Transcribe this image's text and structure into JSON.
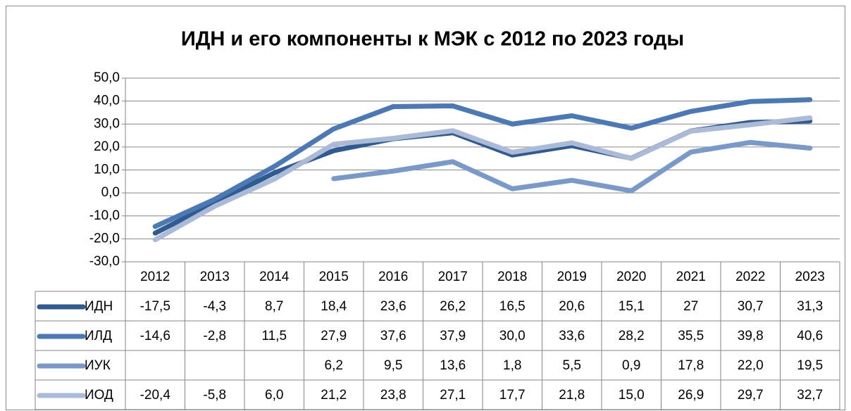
{
  "chart_data": {
    "type": "line",
    "title": "ИДН и его компоненты к МЭК с 2012 по 2023 годы",
    "categories": [
      "2012",
      "2013",
      "2014",
      "2015",
      "2016",
      "2017",
      "2018",
      "2019",
      "2020",
      "2021",
      "2022",
      "2023"
    ],
    "series": [
      {
        "name": "ИДН",
        "color": "#2f5b91",
        "values": [
          -17.5,
          -4.3,
          8.7,
          18.4,
          23.6,
          26.2,
          16.5,
          20.6,
          15.1,
          27,
          30.7,
          31.3
        ],
        "value_labels": [
          "-17,5",
          "-4,3",
          "8,7",
          "18,4",
          "23,6",
          "26,2",
          "16,5",
          "20,6",
          "15,1",
          "27",
          "30,7",
          "31,3"
        ]
      },
      {
        "name": "ИЛД",
        "color": "#4a79b6",
        "values": [
          -14.6,
          -2.8,
          11.5,
          27.9,
          37.6,
          37.9,
          30.0,
          33.6,
          28.2,
          35.5,
          39.8,
          40.6
        ],
        "value_labels": [
          "-14,6",
          "-2,8",
          "11,5",
          "27,9",
          "37,6",
          "37,9",
          "30,0",
          "33,6",
          "28,2",
          "35,5",
          "39,8",
          "40,6"
        ]
      },
      {
        "name": "ИУК",
        "color": "#7899c9",
        "values": [
          null,
          null,
          null,
          6.2,
          9.5,
          13.6,
          1.8,
          5.5,
          0.9,
          17.8,
          22.0,
          19.5
        ],
        "value_labels": [
          null,
          null,
          null,
          "6,2",
          "9,5",
          "13,6",
          "1,8",
          "5,5",
          "0,9",
          "17,8",
          "22,0",
          "19,5"
        ]
      },
      {
        "name": "ИОД",
        "color": "#aabad7",
        "values": [
          -20.4,
          -5.8,
          6.0,
          21.2,
          23.8,
          27.1,
          17.7,
          21.8,
          15.0,
          26.9,
          29.7,
          32.7
        ],
        "value_labels": [
          "-20,4",
          "-5,8",
          "6,0",
          "21,2",
          "23,8",
          "27,1",
          "17,7",
          "21,8",
          "15,0",
          "26,9",
          "29,7",
          "32,7"
        ]
      }
    ],
    "ylim": [
      -30,
      50
    ],
    "yticks": [
      {
        "value": -30,
        "label": "-30,0"
      },
      {
        "value": -20,
        "label": "-20,0"
      },
      {
        "value": -10,
        "label": "-10,0"
      },
      {
        "value": 0,
        "label": "0,0"
      },
      {
        "value": 10,
        "label": "10,0"
      },
      {
        "value": 20,
        "label": "20,0"
      },
      {
        "value": 30,
        "label": "30,0"
      },
      {
        "value": 40,
        "label": "40,0"
      },
      {
        "value": 50,
        "label": "50,0"
      }
    ],
    "grid": true
  }
}
